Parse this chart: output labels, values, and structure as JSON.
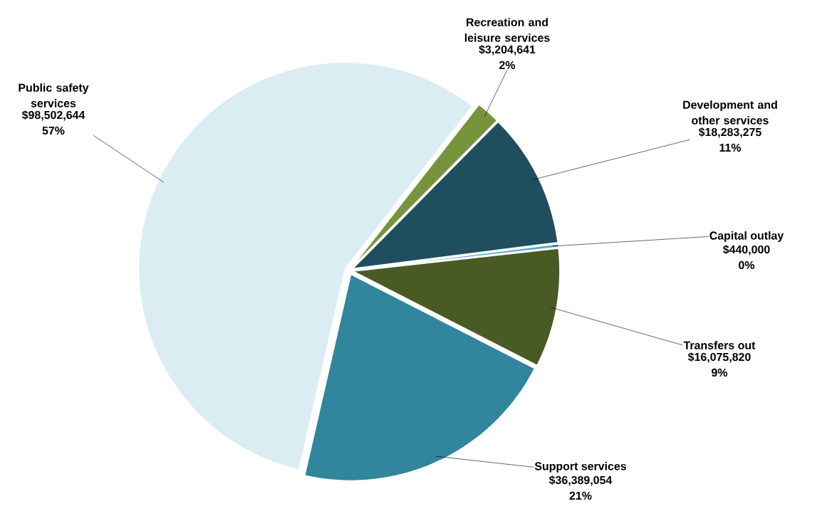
{
  "chart_data": {
    "type": "pie",
    "categories": [
      "Recreation and leisure services",
      "Development and other services",
      "Capital outlay",
      "Transfers out",
      "Support services",
      "Public safety services"
    ],
    "values": [
      3204641,
      18283275,
      440000,
      16075820,
      36389054,
      98502644
    ],
    "colors": [
      "#77933c",
      "#1f4e5f",
      "#4bacc6",
      "#4a5a24",
      "#31859c",
      "#daedf2"
    ],
    "value_labels": [
      "$3,204,641 2%",
      "$18,283,275 11%",
      "$440,000 0%",
      "$16,075,820 9%",
      "$36,389,054 21%",
      "$98,502,644 57%"
    ]
  }
}
